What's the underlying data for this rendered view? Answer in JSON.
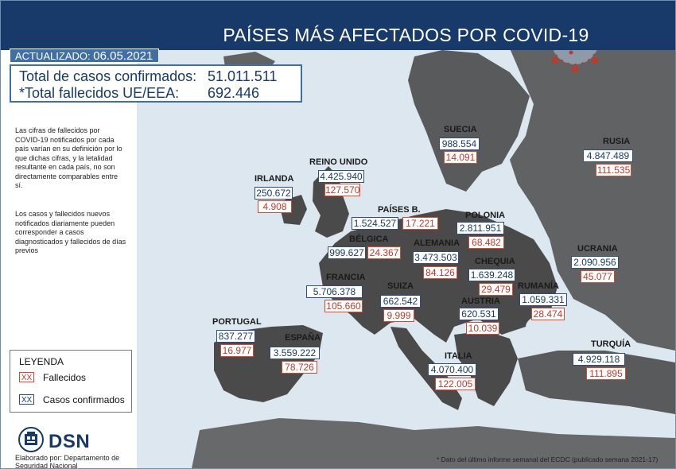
{
  "header": {
    "title": "PAÍSES MÁS AFECTADOS POR COVID-19"
  },
  "updated": {
    "label": "ACTUALIZADO:",
    "date": "06.05.2021"
  },
  "totals": {
    "cases_label": "Total de casos confirmados:",
    "cases_value": "51.011.511",
    "deaths_label": "*Total fallecidos UE/EEA:",
    "deaths_value": "692.446"
  },
  "notes": {
    "note1": "Las cifras de fallecidos por COVID-19 notificados por cada país varían en su definición por lo que dichas cifras, y la letalidad resultante en cada país, no son directamente comparables entre sí.",
    "note2": "Los casos y fallecidos nuevos notificados diariamente pueden corresponder a casos diagnosticados y fallecidos de días previos"
  },
  "legend": {
    "title": "LEYENDA",
    "deaths_symbol": "XX",
    "deaths_label": "Fallecidos",
    "cases_symbol": "XX",
    "cases_label": "Casos confirmados"
  },
  "footer": {
    "logo_text": "DSN",
    "elaborated": "Elaborado por: Departamento de Seguridad Nacional",
    "footnote": "* Dato del último informe semanal del ECDC (publicado semana 2021-17)"
  },
  "colors": {
    "navy": "#173a6b",
    "accent": "#3f6fa5",
    "deaths": "#c0392b",
    "sea": "#dde7f0",
    "land": "#4a4a4a"
  },
  "countries": [
    {
      "name": "IRLANDA",
      "cases": "250.672",
      "deaths": "4.908"
    },
    {
      "name": "REINO UNIDO",
      "cases": "4.425.940",
      "deaths": "127.570"
    },
    {
      "name": "SUECIA",
      "cases": "988.554",
      "deaths": "14.091"
    },
    {
      "name": "RUSIA",
      "cases": "4.847.489",
      "deaths": "111.535"
    },
    {
      "name": "PAÍSES B.",
      "cases": "1.524.527",
      "deaths": "17.221"
    },
    {
      "name": "POLONIA",
      "cases": "2.811.951",
      "deaths": "68.482"
    },
    {
      "name": "BÉLGICA",
      "cases": "999.627",
      "deaths": "24.367"
    },
    {
      "name": "ALEMANIA",
      "cases": "3.473.503",
      "deaths": "84.126"
    },
    {
      "name": "UCRANIA",
      "cases": "2.090.956",
      "deaths": "45.077"
    },
    {
      "name": "CHEQUIA",
      "cases": "1.639.248",
      "deaths": "29.479"
    },
    {
      "name": "FRANCIA",
      "cases": "5.706.378",
      "deaths": "105.660"
    },
    {
      "name": "SUIZA",
      "cases": "662.542",
      "deaths": "9.999"
    },
    {
      "name": "RUMANÍA",
      "cases": "1.059.331",
      "deaths": "28.474"
    },
    {
      "name": "AUSTRIA",
      "cases": "620.531",
      "deaths": "10.039"
    },
    {
      "name": "PORTUGAL",
      "cases": "837.277",
      "deaths": "16.977"
    },
    {
      "name": "ESPAÑA",
      "cases": "3.559.222",
      "deaths": "78.726"
    },
    {
      "name": "ITALIA",
      "cases": "4.070.400",
      "deaths": "122.005"
    },
    {
      "name": "TURQUÍA",
      "cases": "4.929.118",
      "deaths": "111.895"
    }
  ]
}
